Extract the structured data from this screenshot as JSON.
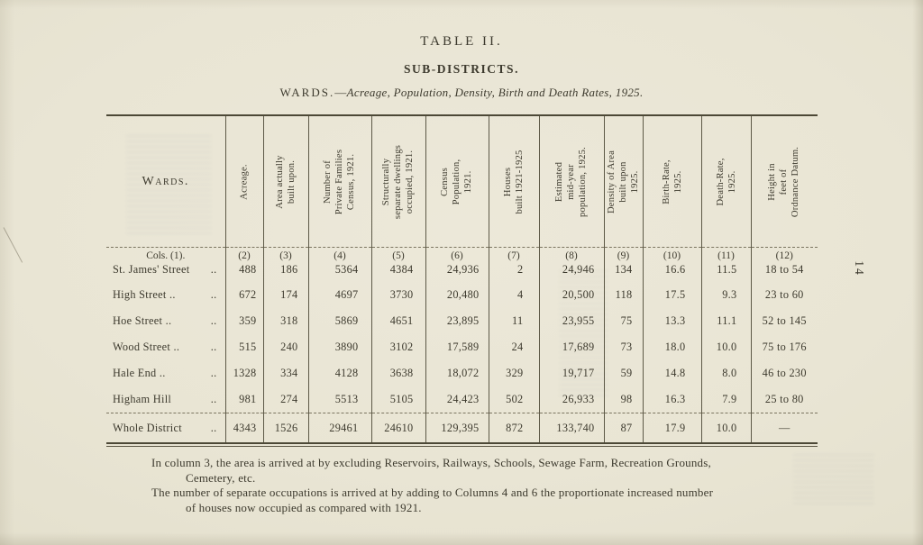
{
  "page": {
    "number": "14",
    "title": "TABLE II.",
    "subtitle": "SUB-DISTRICTS.",
    "caption": {
      "prefix": "WARDS.",
      "dash": "—",
      "italic": "Acreage, Population, Density, Birth and Death Rates, 1925."
    }
  },
  "table": {
    "wards_header": "Wards.",
    "columns": [
      {
        "id": "acreage",
        "label": "Acreage."
      },
      {
        "id": "area-built-upon",
        "label": "Area actually\nbuilt upon."
      },
      {
        "id": "private-families",
        "label": "Number of\nPrivate Families\nCensus, 1921."
      },
      {
        "id": "separate-dwellings",
        "label": "Structurally\nseparate dwellings\noccupied, 1921."
      },
      {
        "id": "census-population",
        "label": "Census\nPopulation,\n1921."
      },
      {
        "id": "houses-built",
        "label": "Houses\nbuilt 1921-1925"
      },
      {
        "id": "estimated-population",
        "label": "Estimated\nmid-year\npopulation, 1925."
      },
      {
        "id": "density",
        "label": "Density of Area\nbuilt upon\n1925."
      },
      {
        "id": "birth-rate",
        "label": "Birth-Rate,\n1925."
      },
      {
        "id": "death-rate",
        "label": "Death-Rate,\n1925."
      },
      {
        "id": "height-ordnance",
        "label": "Height in\nfeet of\nOrdnance Datum."
      }
    ],
    "cols_row": {
      "first": "Cols. (1).",
      "labels": [
        "(2)",
        "(3)",
        "(4)",
        "(5)",
        "(6)",
        "(7)",
        "(8)",
        "(9)",
        "(10)",
        "(11)",
        "(12)"
      ]
    },
    "rows": [
      {
        "name": "St. James' Street",
        "leader": "..",
        "values": [
          "488",
          "186",
          "5364",
          "4384",
          "24,936",
          "2",
          "24,946",
          "134",
          "16.6",
          "11.5",
          "18 to 54"
        ]
      },
      {
        "name": "High Street ..",
        "leader": "..",
        "values": [
          "672",
          "174",
          "4697",
          "3730",
          "20,480",
          "4",
          "20,500",
          "118",
          "17.5",
          "9.3",
          "23 to 60"
        ]
      },
      {
        "name": "Hoe Street ..",
        "leader": "..",
        "values": [
          "359",
          "318",
          "5869",
          "4651",
          "23,895",
          "11",
          "23,955",
          "75",
          "13.3",
          "11.1",
          "52 to 145"
        ]
      },
      {
        "name": "Wood Street ..",
        "leader": "..",
        "values": [
          "515",
          "240",
          "3890",
          "3102",
          "17,589",
          "24",
          "17,689",
          "73",
          "18.0",
          "10.0",
          "75 to 176"
        ]
      },
      {
        "name": "Hale End ..",
        "leader": "..",
        "values": [
          "1328",
          "334",
          "4128",
          "3638",
          "18,072",
          "329",
          "19,717",
          "59",
          "14.8",
          "8.0",
          "46 to 230"
        ]
      },
      {
        "name": "Higham Hill",
        "leader": "..",
        "values": [
          "981",
          "274",
          "5513",
          "5105",
          "24,423",
          "502",
          "26,933",
          "98",
          "16.3",
          "7.9",
          "25 to 80"
        ]
      }
    ],
    "total_row": {
      "name": "Whole District",
      "leader": "..",
      "values": [
        "4343",
        "1526",
        "29461",
        "24610",
        "129,395",
        "872",
        "133,740",
        "87",
        "17.9",
        "10.0",
        "—"
      ]
    }
  },
  "footnotes": [
    {
      "lines": [
        "In column 3, the area is arrived at by excluding Reservoirs, Railways, Schools, Sewage Farm, Recreation Grounds,",
        "Cemetery, etc."
      ]
    },
    {
      "lines": [
        "The number of separate occupations is arrived at by adding to Columns 4 and 6 the proportionate increased number",
        "of houses now occupied as compared with 1921."
      ]
    }
  ],
  "colors": {
    "paper": "#e9e5d4",
    "ink": "#3d3a2e",
    "rule": "#5d5947"
  }
}
